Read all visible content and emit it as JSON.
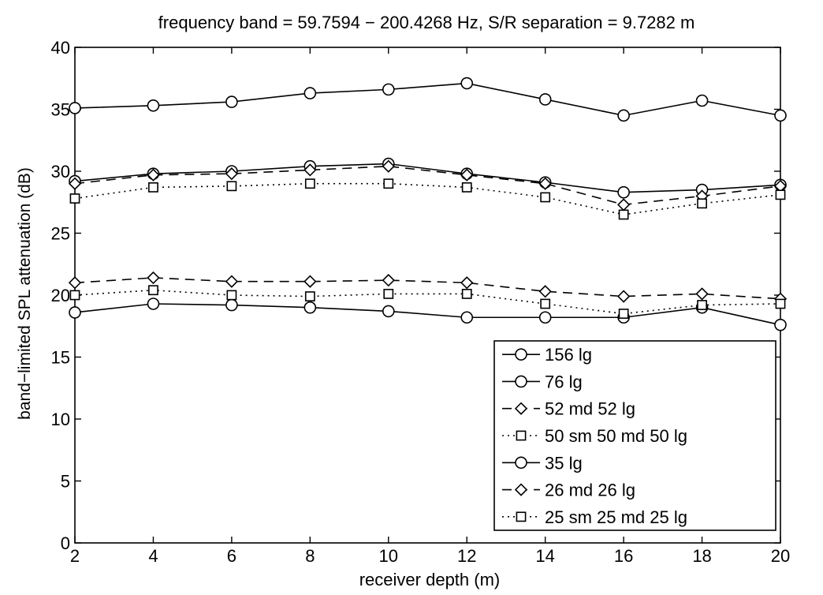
{
  "chart_data": {
    "type": "line",
    "title": "frequency band = 59.7594 − 200.4268 Hz, S/R separation = 9.7282 m",
    "xlabel": "receiver depth (m)",
    "ylabel": "band−limited SPL attenuation (dB)",
    "xlim": [
      2,
      20
    ],
    "ylim": [
      0,
      40
    ],
    "xticks": [
      2,
      4,
      6,
      8,
      10,
      12,
      14,
      16,
      18,
      20
    ],
    "yticks": [
      0,
      5,
      10,
      15,
      20,
      25,
      30,
      35,
      40
    ],
    "grid": false,
    "legend_position": "bottom-right",
    "x": [
      2,
      4,
      6,
      8,
      10,
      12,
      14,
      16,
      18,
      20
    ],
    "series": [
      {
        "name": "156 lg",
        "marker": "circle",
        "linestyle": "solid",
        "values": [
          35.1,
          35.3,
          35.6,
          36.3,
          36.6,
          37.1,
          35.8,
          34.5,
          35.7,
          34.5
        ]
      },
      {
        "name": "76 lg",
        "marker": "circle",
        "linestyle": "solid",
        "values": [
          29.2,
          29.8,
          30.0,
          30.4,
          30.6,
          29.8,
          29.1,
          28.3,
          28.5,
          28.9
        ]
      },
      {
        "name": "52 md 52 lg",
        "marker": "diamond",
        "linestyle": "dashed",
        "values": [
          29.0,
          29.7,
          29.8,
          30.1,
          30.4,
          29.7,
          29.0,
          27.3,
          28.0,
          28.8
        ]
      },
      {
        "name": "50 sm 50 md 50 lg",
        "marker": "square",
        "linestyle": "dotted",
        "values": [
          27.8,
          28.7,
          28.8,
          29.0,
          29.0,
          28.7,
          27.9,
          26.5,
          27.4,
          28.1
        ]
      },
      {
        "name": "35 lg",
        "marker": "circle",
        "linestyle": "solid",
        "values": [
          18.6,
          19.3,
          19.2,
          19.0,
          18.7,
          18.2,
          18.2,
          18.2,
          19.0,
          17.6
        ]
      },
      {
        "name": "26 md 26 lg",
        "marker": "diamond",
        "linestyle": "dashed",
        "values": [
          21.0,
          21.4,
          21.1,
          21.1,
          21.2,
          21.0,
          20.3,
          19.9,
          20.1,
          19.7
        ]
      },
      {
        "name": "25 sm 25 md 25 lg",
        "marker": "square",
        "linestyle": "dotted",
        "values": [
          20.0,
          20.4,
          20.0,
          19.9,
          20.1,
          20.1,
          19.3,
          18.5,
          19.2,
          19.3
        ]
      }
    ]
  }
}
